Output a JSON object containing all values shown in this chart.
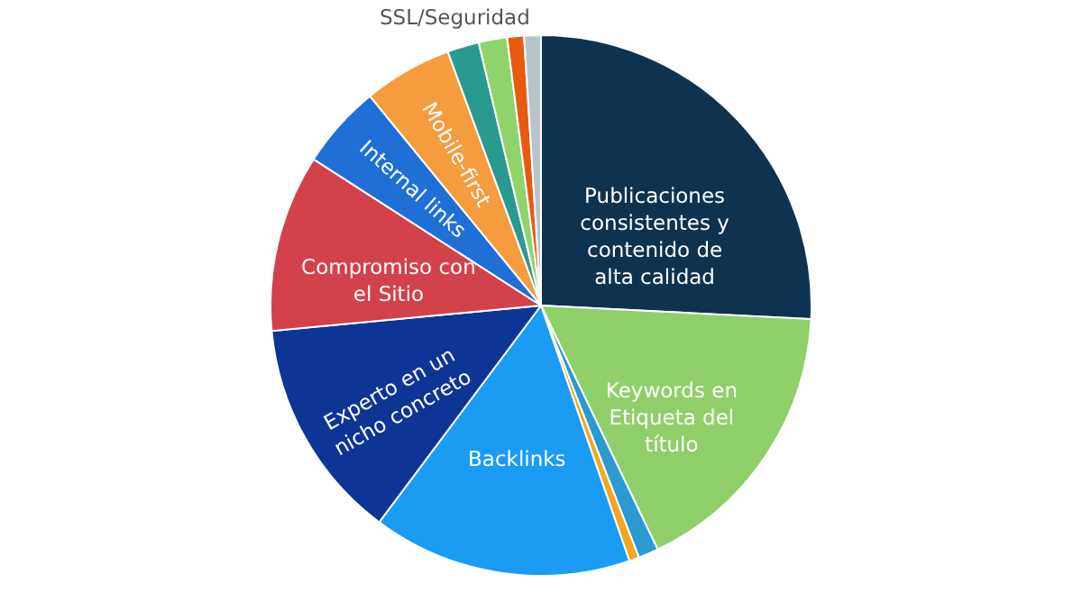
{
  "chart_data": {
    "type": "pie",
    "categories": [
      "Publicaciones consistentes y contenido de alta calidad",
      "Keywords en Etiqueta del título",
      null,
      null,
      "Backlinks",
      "Experto en un nicho concreto",
      "Compromiso con el Sitio",
      "Internal links",
      "Mobile-first",
      "SSL/Seguridad",
      null,
      null,
      null
    ],
    "values": [
      25.8,
      17.1,
      1.2,
      0.6,
      15.5,
      13.3,
      10.6,
      5.0,
      5.3,
      1.9,
      1.7,
      1.0,
      1.0
    ],
    "colors": [
      "#0e3350",
      "#8fcf6a",
      "#2a9ad0",
      "#f5a623",
      "#1a9cf5",
      "#0c3596",
      "#d3414a",
      "#1f6fd6",
      "#f59c3c",
      "#2b9a8e",
      "#8fd46a",
      "#e85a10",
      "#b8c4cc"
    ]
  }
}
